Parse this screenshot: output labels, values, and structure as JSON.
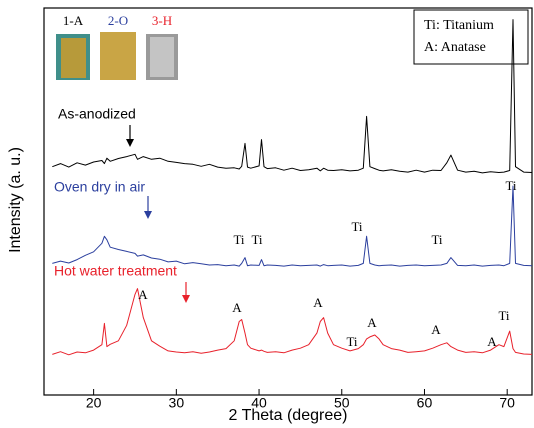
{
  "chart_data": {
    "type": "line",
    "x_label": "2 Theta (degree)",
    "y_label": "Intensity (a. u.)",
    "xlim": [
      14,
      73
    ],
    "ylim": [
      0,
      100
    ],
    "xticks": [
      20,
      30,
      40,
      50,
      60,
      70
    ],
    "x": [
      15,
      16,
      17,
      18,
      19,
      20,
      21,
      21.3,
      21.6,
      22,
      23,
      24,
      25,
      25.3,
      26,
      27,
      28,
      29,
      30,
      31,
      32,
      33,
      34,
      35,
      36,
      37,
      37.6,
      37.9,
      38.3,
      38.6,
      39,
      40,
      40.3,
      40.6,
      41,
      42,
      43,
      44,
      45,
      46,
      47,
      47.4,
      47.8,
      48.3,
      49,
      50,
      51,
      52,
      52.6,
      53,
      53.4,
      54,
      54.5,
      55,
      56,
      57,
      58,
      59,
      60,
      61,
      62,
      62.7,
      63.2,
      64,
      65,
      66,
      67,
      68,
      69,
      69.6,
      70.3,
      70.7,
      71,
      72,
      73
    ],
    "series": [
      {
        "name": "As-anodized",
        "color": "#000000",
        "values": [
          59,
          59.8,
          58.9,
          60,
          59.4,
          60.2,
          60.6,
          59.8,
          61.2,
          60.4,
          61.1,
          61.6,
          62.2,
          60.9,
          61.6,
          60.9,
          61.2,
          60.4,
          60.1,
          59.8,
          59.6,
          59.1,
          59.6,
          58.9,
          58.6,
          58.7,
          58.4,
          59.1,
          65,
          58.9,
          58.6,
          59.2,
          66,
          59,
          58.5,
          58.7,
          58.1,
          58.6,
          58,
          58.2,
          58.6,
          57.9,
          58.6,
          58.1,
          58,
          58.2,
          57.9,
          58.1,
          58.6,
          72,
          59,
          58.5,
          58.1,
          57.9,
          58.2,
          57.8,
          57.6,
          58.1,
          57.6,
          58.1,
          58,
          60,
          62,
          58.1,
          57.6,
          57.8,
          57.4,
          57.7,
          57.5,
          57.6,
          58,
          97,
          59,
          57.6,
          57.5
        ]
      },
      {
        "name": "Oven dry in air",
        "color": "#2b3f9e",
        "values": [
          34,
          34.6,
          34.1,
          35,
          36.1,
          37,
          39.2,
          41,
          40.1,
          38.2,
          37.6,
          37.1,
          36.6,
          35.9,
          36.2,
          35.4,
          35.1,
          34.4,
          34.6,
          33.9,
          34.2,
          33.9,
          33.6,
          33.7,
          33.4,
          33.6,
          33.3,
          34,
          35.5,
          33.4,
          33.6,
          33.5,
          35,
          33.4,
          33.6,
          33.5,
          33.3,
          33.6,
          33.4,
          33.5,
          33.6,
          33.3,
          33.7,
          33.4,
          33.5,
          33.6,
          33.3,
          33.5,
          34,
          41,
          34,
          33.6,
          33.4,
          33.5,
          33.6,
          33.3,
          33.5,
          33.6,
          33.4,
          33.5,
          33.6,
          34,
          35.5,
          33.5,
          33.4,
          33.6,
          33.3,
          33.5,
          33.6,
          33.4,
          34,
          54,
          34,
          33.5,
          33.4
        ]
      },
      {
        "name": "Hot water treatment",
        "color": "#e8212b",
        "values": [
          10.5,
          11.2,
          10.4,
          11.1,
          10.9,
          11.6,
          13,
          18.5,
          12.5,
          13.1,
          14,
          18,
          26,
          27.5,
          20,
          14,
          12.6,
          11.4,
          11.1,
          10.9,
          11.2,
          10.8,
          11.1,
          11.6,
          12,
          14,
          19,
          19.5,
          16,
          13,
          12.1,
          11.4,
          11.6,
          11.3,
          11,
          11.2,
          10.9,
          11.6,
          12.1,
          13,
          16,
          19,
          20,
          16,
          13,
          12.1,
          11.4,
          12,
          13,
          14.5,
          15,
          15.5,
          14.5,
          13,
          12,
          11.6,
          11,
          11.2,
          11.4,
          12.1,
          13,
          13.5,
          12.5,
          11.6,
          11,
          11.2,
          10.9,
          11.6,
          13,
          12.5,
          16.5,
          12,
          11,
          10.6,
          10.5
        ]
      }
    ],
    "peak_labels": [
      "Ti",
      "Ti",
      "Ti",
      "Ti",
      "Ti",
      "A",
      "A",
      "A",
      "Ti",
      "A",
      "A",
      "A",
      "Ti"
    ],
    "legend_lines": [
      "Ti: Titanium",
      "A: Anatase"
    ],
    "inset_labels": [
      "1-A",
      "2-O",
      "3-H"
    ]
  }
}
